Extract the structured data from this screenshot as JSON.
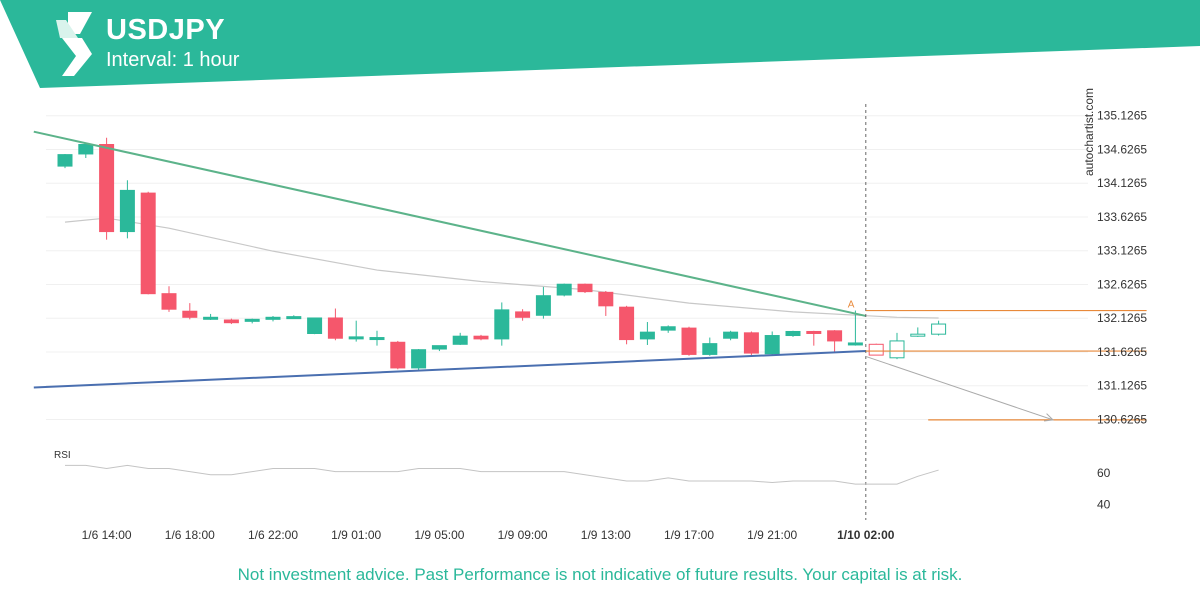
{
  "header": {
    "symbol": "USDJPY",
    "interval": "Interval: 1 hour",
    "brand_color": "#2bb89a",
    "logo_icon": "autochartist-logo-icon"
  },
  "watermark": "autochartist.com",
  "disclaimer": "Not investment advice. Past Performance is not indicative of future results. Your capital is at risk.",
  "colors": {
    "up": "#2bb89a",
    "down": "#f5576c",
    "resistance": "#5cb38a",
    "support": "#4a6fb0",
    "level": "#e8893a",
    "ma": "#c8c8c8",
    "projection": "#aaaaaa",
    "grid": "#f0f0f0"
  },
  "chart_data": {
    "type": "candlestick",
    "pattern": "triangle",
    "pattern_marker": "A",
    "y_ticks": [
      "135.1265",
      "134.6265",
      "134.1265",
      "133.6265",
      "133.1265",
      "132.6265",
      "132.1265",
      "131.6265",
      "131.1265",
      "130.6265"
    ],
    "ylim": [
      130.5,
      135.3
    ],
    "x_ticks": [
      "1/6 14:00",
      "1/6 18:00",
      "1/6 22:00",
      "1/9 01:00",
      "1/9 05:00",
      "1/9 09:00",
      "1/9 13:00",
      "1/9 17:00",
      "1/9 21:00",
      "1/10 02:00"
    ],
    "highlight_x_tick": "1/10 02:00",
    "candles": [
      {
        "o": 134.38,
        "h": 134.56,
        "l": 134.35,
        "c": 134.55
      },
      {
        "o": 134.56,
        "h": 134.72,
        "l": 134.5,
        "c": 134.7
      },
      {
        "o": 134.7,
        "h": 134.8,
        "l": 133.29,
        "c": 133.41
      },
      {
        "o": 133.41,
        "h": 134.17,
        "l": 133.31,
        "c": 134.02
      },
      {
        "o": 133.98,
        "h": 134.0,
        "l": 132.48,
        "c": 132.49
      },
      {
        "o": 132.49,
        "h": 132.6,
        "l": 132.22,
        "c": 132.26
      },
      {
        "o": 132.23,
        "h": 132.35,
        "l": 132.11,
        "c": 132.14
      },
      {
        "o": 132.14,
        "h": 132.19,
        "l": 132.1,
        "c": 132.14
      },
      {
        "o": 132.1,
        "h": 132.12,
        "l": 132.04,
        "c": 132.06
      },
      {
        "o": 132.08,
        "h": 132.12,
        "l": 132.05,
        "c": 132.11
      },
      {
        "o": 132.11,
        "h": 132.16,
        "l": 132.08,
        "c": 132.14
      },
      {
        "o": 132.14,
        "h": 132.17,
        "l": 132.12,
        "c": 132.15
      },
      {
        "o": 131.9,
        "h": 132.13,
        "l": 131.89,
        "c": 132.13
      },
      {
        "o": 132.13,
        "h": 132.27,
        "l": 131.8,
        "c": 131.83
      },
      {
        "o": 131.84,
        "h": 132.09,
        "l": 131.78,
        "c": 131.85
      },
      {
        "o": 131.84,
        "h": 131.94,
        "l": 131.72,
        "c": 131.84
      },
      {
        "o": 131.77,
        "h": 131.79,
        "l": 131.37,
        "c": 131.39
      },
      {
        "o": 131.39,
        "h": 131.67,
        "l": 131.36,
        "c": 131.66
      },
      {
        "o": 131.67,
        "h": 131.72,
        "l": 131.64,
        "c": 131.72
      },
      {
        "o": 131.74,
        "h": 131.91,
        "l": 131.73,
        "c": 131.86
      },
      {
        "o": 131.86,
        "h": 131.88,
        "l": 131.8,
        "c": 131.82
      },
      {
        "o": 131.82,
        "h": 132.36,
        "l": 131.72,
        "c": 132.25
      },
      {
        "o": 132.22,
        "h": 132.26,
        "l": 132.09,
        "c": 132.14
      },
      {
        "o": 132.17,
        "h": 132.59,
        "l": 132.12,
        "c": 132.46
      },
      {
        "o": 132.47,
        "h": 132.64,
        "l": 132.45,
        "c": 132.63
      },
      {
        "o": 132.63,
        "h": 132.64,
        "l": 132.5,
        "c": 132.52
      },
      {
        "o": 132.51,
        "h": 132.53,
        "l": 132.16,
        "c": 132.31
      },
      {
        "o": 132.29,
        "h": 132.31,
        "l": 131.74,
        "c": 131.81
      },
      {
        "o": 131.82,
        "h": 132.07,
        "l": 131.73,
        "c": 131.92
      },
      {
        "o": 131.95,
        "h": 132.02,
        "l": 131.91,
        "c": 132.0
      },
      {
        "o": 131.98,
        "h": 132.0,
        "l": 131.57,
        "c": 131.59
      },
      {
        "o": 131.59,
        "h": 131.84,
        "l": 131.57,
        "c": 131.75
      },
      {
        "o": 131.83,
        "h": 131.94,
        "l": 131.8,
        "c": 131.92
      },
      {
        "o": 131.91,
        "h": 131.93,
        "l": 131.58,
        "c": 131.61
      },
      {
        "o": 131.6,
        "h": 131.93,
        "l": 131.58,
        "c": 131.87
      },
      {
        "o": 131.87,
        "h": 131.94,
        "l": 131.85,
        "c": 131.93
      },
      {
        "o": 131.93,
        "h": 131.94,
        "l": 131.72,
        "c": 131.92
      },
      {
        "o": 131.94,
        "h": 131.95,
        "l": 131.62,
        "c": 131.79
      },
      {
        "o": 131.75,
        "h": 132.24,
        "l": 131.72,
        "c": 131.76
      },
      {
        "o": 131.74,
        "h": 131.75,
        "l": 131.58,
        "c": 131.58
      },
      {
        "o": 131.54,
        "h": 131.91,
        "l": 131.52,
        "c": 131.79
      },
      {
        "o": 131.87,
        "h": 131.99,
        "l": 131.85,
        "c": 131.89
      },
      {
        "o": 131.89,
        "h": 132.09,
        "l": 131.87,
        "c": 132.04
      }
    ],
    "moving_average": [
      {
        "i": 0,
        "v": 133.55
      },
      {
        "i": 2,
        "v": 133.61
      },
      {
        "i": 5,
        "v": 133.46
      },
      {
        "i": 10,
        "v": 133.12
      },
      {
        "i": 15,
        "v": 132.84
      },
      {
        "i": 20,
        "v": 132.67
      },
      {
        "i": 25,
        "v": 132.55
      },
      {
        "i": 30,
        "v": 132.35
      },
      {
        "i": 35,
        "v": 132.22
      },
      {
        "i": 40,
        "v": 132.14
      },
      {
        "i": 42,
        "v": 132.13
      }
    ],
    "resistance_line": {
      "from": {
        "i": -1.5,
        "v": 134.89
      },
      "to": {
        "i": 38.5,
        "v": 132.16
      }
    },
    "support_line": {
      "from": {
        "i": -1.5,
        "v": 131.1
      },
      "to": {
        "i": 38.5,
        "v": 131.64
      }
    },
    "levels": [
      {
        "name": "upper",
        "value": 132.24,
        "from_i": 38.5,
        "to_i": 52.0
      },
      {
        "name": "breakout",
        "value": 131.64,
        "from_i": 38.5,
        "to_i": 52.0
      },
      {
        "name": "target",
        "value": 130.62,
        "from_i": 41.5,
        "to_i": 52.0
      }
    ],
    "projection": {
      "from": {
        "i": 38.5,
        "v": 131.56
      },
      "to": {
        "i": 47.5,
        "v": 130.62
      }
    },
    "breakout_index": 38.5,
    "rsi": {
      "label": "RSI",
      "y_ticks": [
        "60",
        "40"
      ],
      "ylim": [
        30,
        80
      ],
      "values": [
        65,
        65,
        63,
        65,
        63,
        63,
        61,
        59,
        59,
        61,
        63,
        63,
        63,
        61,
        61,
        61,
        61,
        63,
        63,
        63,
        61,
        61,
        61,
        61,
        61,
        59,
        57,
        55,
        55,
        57,
        55,
        55,
        55,
        55,
        54,
        55,
        55,
        55,
        53,
        53,
        53,
        58,
        62
      ]
    }
  }
}
